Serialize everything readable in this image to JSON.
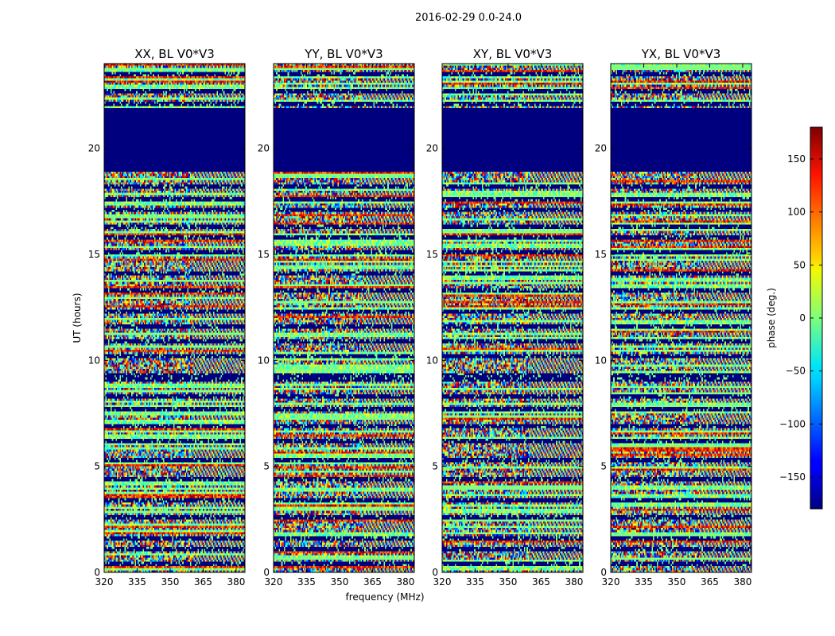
{
  "chart_data": {
    "type": "heatmap",
    "suptitle": "2016-02-29 0.0-24.0",
    "xlabel": "frequency (MHz)",
    "ylabel": "UT (hours)",
    "xlim": [
      320,
      384
    ],
    "ylim": [
      0,
      24
    ],
    "xticks": [
      320,
      335,
      350,
      365,
      380
    ],
    "xtick_labels": [
      "320",
      "335",
      "350",
      "365",
      "380"
    ],
    "yticks": [
      0,
      5,
      10,
      15,
      20
    ],
    "ytick_labels": [
      "0",
      "5",
      "10",
      "15",
      "20"
    ],
    "colormap": "jet",
    "colorbar": {
      "label": "phase (deg.)",
      "range": [
        -180,
        180
      ],
      "ticks": [
        -150,
        -100,
        -50,
        0,
        50,
        100,
        150
      ],
      "tick_labels": [
        "−150",
        "−100",
        "−50",
        "0",
        "50",
        "100",
        "150"
      ]
    },
    "panels": [
      {
        "title": "XX, BL V0*V3",
        "pol": "XX"
      },
      {
        "title": "YY, BL V0*V3",
        "pol": "YY"
      },
      {
        "title": "XY, BL V0*V3",
        "pol": "XY"
      },
      {
        "title": "YX, BL V0*V3",
        "pol": "YX"
      }
    ],
    "flagged_ut_ranges": [
      [
        18.9,
        21.9
      ],
      [
        21.4,
        21.9
      ]
    ],
    "gap_ut_lines": [
      0.4,
      1.1,
      1.6,
      2.6,
      3.4,
      4.4,
      5.3,
      6.2,
      6.9,
      7.7,
      8.3,
      9.1,
      9.3,
      10.2,
      10.9,
      11.6,
      12.3,
      13.3,
      14.1,
      15.1,
      15.8,
      16.3,
      17.1,
      17.6,
      18.2,
      19.0,
      21.6,
      22.1,
      22.7,
      23.5
    ]
  }
}
